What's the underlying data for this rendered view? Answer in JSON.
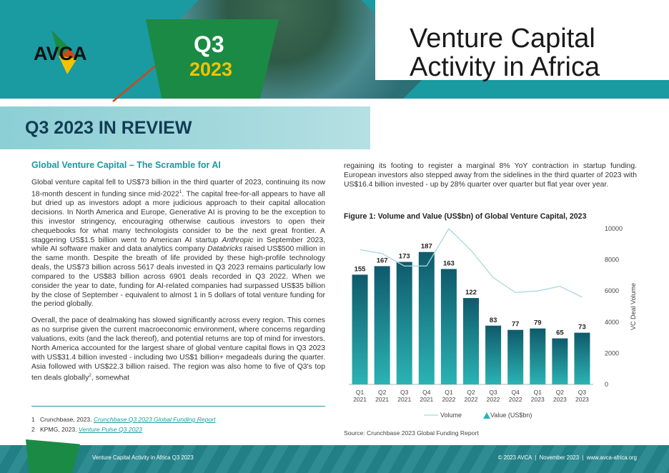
{
  "header": {
    "logo_text": "AVCA",
    "quarter": "Q3",
    "year": "2023",
    "title": "Venture Capital Activity in Africa"
  },
  "section_title": "Q3 2023 IN REVIEW",
  "article": {
    "heading": "Global Venture Capital – The Scramble for AI",
    "para1": [
      {
        "t": "Global venture capital fell to US$73 billion in the third quarter of 2023, continuing its now 18-month descent in funding since mid-2022"
      },
      {
        "t": "1",
        "sup": true
      },
      {
        "t": ". The capital free-for-all appears to have all but dried up as investors adopt a more judicious approach to their capital allocation decisions. In North America and Europe, Generative AI is proving to be the exception to this investor stringency, encouraging otherwise cautious investors to open their chequebooks for what many technologists consider to be the next great frontier. A staggering US$1.5 billion went to American AI startup "
      },
      {
        "t": "Anthropic",
        "em": true
      },
      {
        "t": " in September 2023, while AI software maker and data analytics company "
      },
      {
        "t": "Databricks",
        "em": true
      },
      {
        "t": " raised US$500 million in the same month. Despite the breath of life provided by these high-profile technology deals, the US$73 billion across 5617 deals invested in Q3 2023 remains particularly low compared to the US$83 billion across 6901 deals recorded in Q3 2022. When we consider the year to date, funding for AI-related companies had surpassed US$35 billion by the close of September - equivalent to almost 1 in 5 dollars of total venture funding for the period globally."
      }
    ],
    "para2": [
      {
        "t": "Overall, the pace of dealmaking has slowed significantly across every region. This comes as no surprise given the current macroeconomic environment, where concerns regarding valuations, exits (and the lack thereof), and potential returns are top of mind for investors. North America accounted for the largest share of global venture capital flows in Q3 2023 with US$31.4 billion invested - including two US$1 billion+ megadeals during the quarter. Asia followed with US$22.3 billion raised. The region was also home to five of Q3's top ten deals globally"
      },
      {
        "t": "2",
        "sup": true
      },
      {
        "t": ", somewhat"
      }
    ],
    "right_para": "regaining its footing to register a marginal 8% YoY contraction in startup funding. European investors also stepped away from the sidelines in the third quarter of 2023 with US$16.4 billion invested - up by 28% quarter over quarter but flat year over year."
  },
  "footnotes": [
    {
      "prefix": "1   Crunchbase, 2023. ",
      "link": "Crunchbase Q3 2023 Global Funding Report"
    },
    {
      "prefix": "2   KPMG, 2023. ",
      "link": "Venture Pulse Q3 2023"
    }
  ],
  "figure": {
    "title": "Figure 1: Volume and Value (US$bn) of Global Venture Capital, 2023",
    "source": "Source: Crunchbase 2023 Global Funding Report"
  },
  "chart_data": {
    "type": "bar",
    "title": "Figure 1: Volume and Value (US$bn) of Global Venture Capital, 2023",
    "categories": [
      [
        "Q1",
        "2021"
      ],
      [
        "Q2",
        "2021"
      ],
      [
        "Q3",
        "2021"
      ],
      [
        "Q4",
        "2021"
      ],
      [
        "Q1",
        "2022"
      ],
      [
        "Q2",
        "2022"
      ],
      [
        "Q3",
        "2022"
      ],
      [
        "Q4",
        "2022"
      ],
      [
        "Q1",
        "2023"
      ],
      [
        "Q2",
        "2023"
      ],
      [
        "Q3",
        "2023"
      ]
    ],
    "series": [
      {
        "name": "Value (US$bn)",
        "type": "bar",
        "axis": "left",
        "values": [
          155,
          167,
          173,
          187,
          163,
          122,
          83,
          77,
          79,
          65,
          73
        ]
      },
      {
        "name": "Volume",
        "type": "line",
        "axis": "right",
        "values": [
          8650,
          8400,
          7600,
          7600,
          10000,
          8600,
          6850,
          5900,
          6000,
          6300,
          5600
        ]
      }
    ],
    "ylim_left": [
      0,
      220
    ],
    "ylim_right": [
      0,
      10000
    ],
    "right_ticks": [
      0,
      2000,
      4000,
      6000,
      8000,
      10000
    ],
    "ylabel_right": "VC Deal Volume",
    "legend": [
      "Volume",
      "Value (US$bn)"
    ],
    "colors": {
      "bar_top": "#0f5a6b",
      "bar_bottom": "#2bb3b3",
      "line": "#a9d7dc"
    }
  },
  "footer": {
    "left": "Venture Capital Activity in Africa Q3 2023",
    "right": "© 2023 AVCA  |  November 2023  |  www.avca-africa.org"
  },
  "colors": {
    "teal": "#1a9aa1",
    "green": "#1b8a45",
    "yellow": "#f2c300",
    "navy": "#123b55"
  }
}
